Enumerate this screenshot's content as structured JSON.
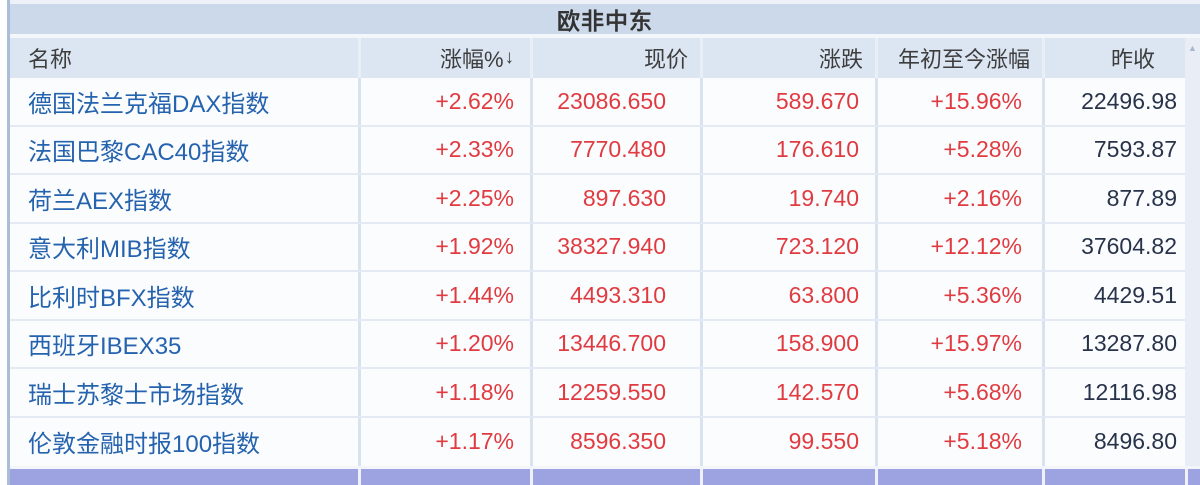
{
  "panel": {
    "title": "欧非中东"
  },
  "table": {
    "columns": [
      {
        "key": "name",
        "label": "名称"
      },
      {
        "key": "change_pct",
        "label": "涨幅%"
      },
      {
        "key": "price",
        "label": "现价"
      },
      {
        "key": "change",
        "label": "涨跌"
      },
      {
        "key": "ytd_change",
        "label": "年初至今涨幅"
      },
      {
        "key": "prev_close",
        "label": "昨收"
      }
    ],
    "sort_indicator": "↓",
    "rows": [
      {
        "name": "德国法兰克福DAX指数",
        "change_pct": "+2.62%",
        "price": "23086.650",
        "change": "589.670",
        "ytd_change": "+15.96%",
        "prev_close": "22496.98"
      },
      {
        "name": "法国巴黎CAC40指数",
        "change_pct": "+2.33%",
        "price": "7770.480",
        "change": "176.610",
        "ytd_change": "+5.28%",
        "prev_close": "7593.87"
      },
      {
        "name": "荷兰AEX指数",
        "change_pct": "+2.25%",
        "price": "897.630",
        "change": "19.740",
        "ytd_change": "+2.16%",
        "prev_close": "877.89"
      },
      {
        "name": "意大利MIB指数",
        "change_pct": "+1.92%",
        "price": "38327.940",
        "change": "723.120",
        "ytd_change": "+12.12%",
        "prev_close": "37604.82"
      },
      {
        "name": "比利时BFX指数",
        "change_pct": "+1.44%",
        "price": "4493.310",
        "change": "63.800",
        "ytd_change": "+5.36%",
        "prev_close": "4429.51"
      },
      {
        "name": "西班牙IBEX35",
        "change_pct": "+1.20%",
        "price": "13446.700",
        "change": "158.900",
        "ytd_change": "+15.97%",
        "prev_close": "13287.80"
      },
      {
        "name": "瑞士苏黎士市场指数",
        "change_pct": "+1.18%",
        "price": "12259.550",
        "change": "142.570",
        "ytd_change": "+5.68%",
        "prev_close": "12116.98"
      },
      {
        "name": "伦敦金融时报100指数",
        "change_pct": "+1.17%",
        "price": "8596.350",
        "change": "99.550",
        "ytd_change": "+5.18%",
        "prev_close": "8496.80"
      }
    ]
  },
  "scrollbar": {
    "up_arrow": "▲"
  },
  "colors": {
    "titlebar_bg": "#ccd9eb",
    "header_bg": "#dce6f3",
    "row_bg": "#fbfcfe",
    "grid_line": "#d9e3f0",
    "name_blue": "#2563ae",
    "value_red": "#e03b40",
    "prev_close_dark": "#28334a",
    "selected_row_lavender": "#9da3e1"
  }
}
